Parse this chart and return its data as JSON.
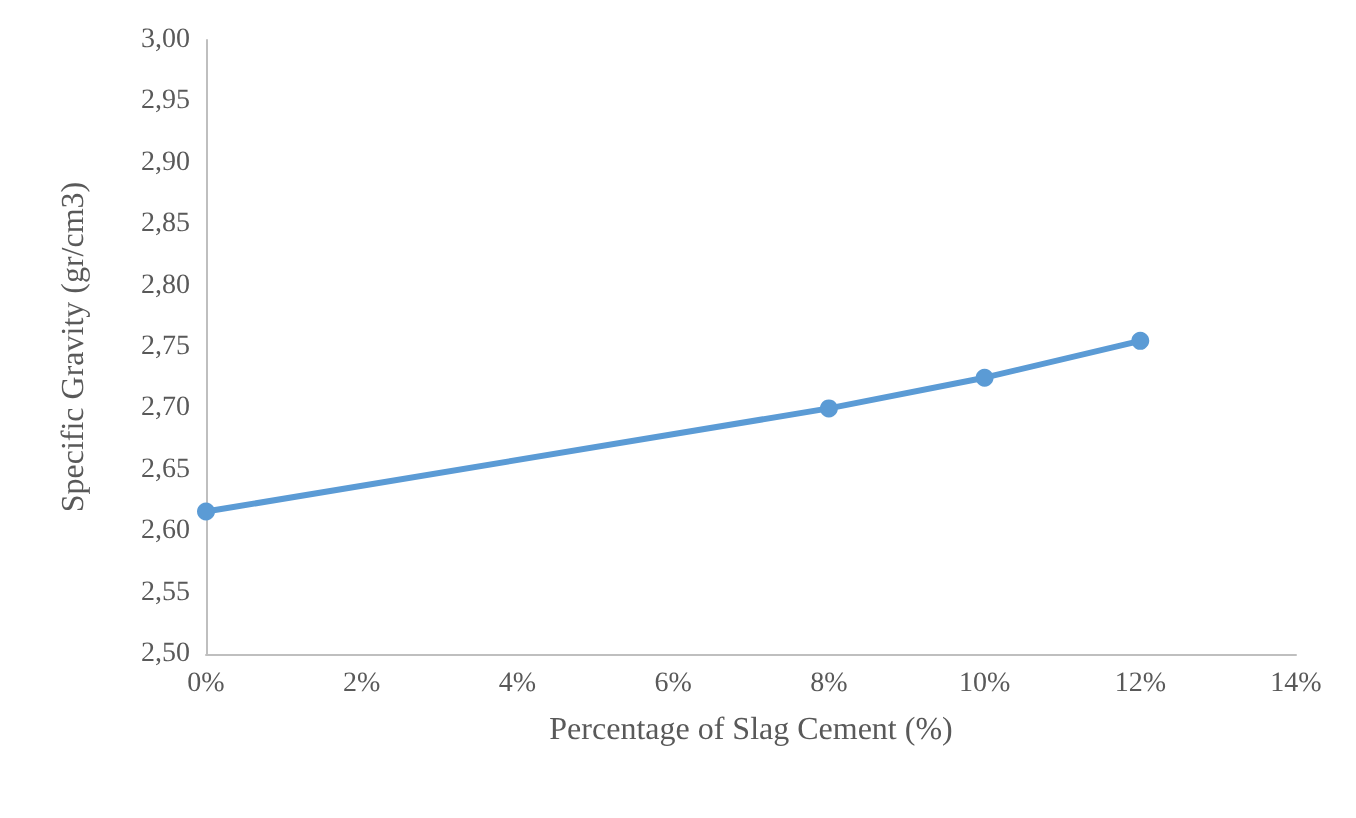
{
  "chart_data": {
    "type": "line",
    "xlabel": "Percentage of Slag Cement (%)",
    "ylabel": "Specific Gravity (gr/cm3)",
    "x": [
      0,
      8,
      10,
      12
    ],
    "series": [
      {
        "color": "#5b9bd5",
        "values": [
          2.616,
          2.7,
          2.725,
          2.755
        ]
      }
    ],
    "xlim": [
      0,
      14
    ],
    "xticks": [
      {
        "value": 0,
        "label": "0%"
      },
      {
        "value": 2,
        "label": "2%"
      },
      {
        "value": 4,
        "label": "4%"
      },
      {
        "value": 6,
        "label": "6%"
      },
      {
        "value": 8,
        "label": "8%"
      },
      {
        "value": 10,
        "label": "10%"
      },
      {
        "value": 12,
        "label": "12%"
      },
      {
        "value": 14,
        "label": "14%"
      }
    ],
    "ylim": [
      2.5,
      3.0
    ],
    "yticks": [
      {
        "value": 2.5,
        "label": "2,50"
      },
      {
        "value": 2.55,
        "label": "2,55"
      },
      {
        "value": 2.6,
        "label": "2,60"
      },
      {
        "value": 2.65,
        "label": "2,65"
      },
      {
        "value": 2.7,
        "label": "2,70"
      },
      {
        "value": 2.75,
        "label": "2,75"
      },
      {
        "value": 2.8,
        "label": "2,80"
      },
      {
        "value": 2.85,
        "label": "2,85"
      },
      {
        "value": 2.9,
        "label": "2,90"
      },
      {
        "value": 2.95,
        "label": "2,95"
      },
      {
        "value": 3.0,
        "label": "3,00"
      }
    ],
    "grid": false,
    "marker": "circle",
    "line_style": "solid"
  }
}
